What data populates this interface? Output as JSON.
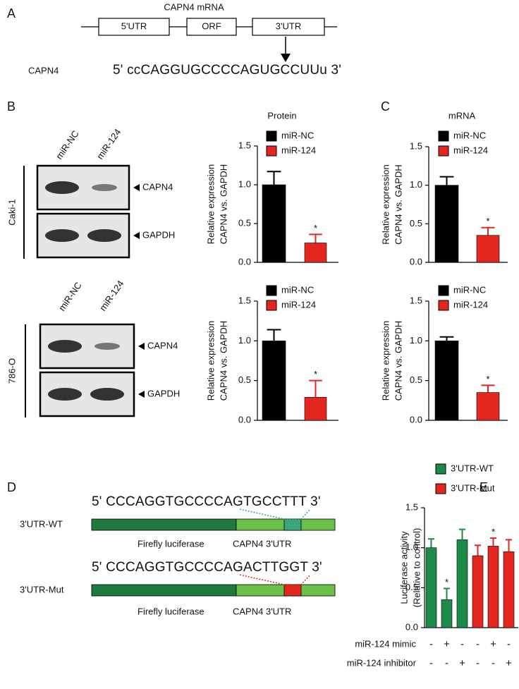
{
  "panel_labels": [
    "A",
    "B",
    "C",
    "D",
    "E"
  ],
  "panel_a": {
    "title": "CAPN4 mRNA",
    "regions": [
      "5'UTR",
      "ORF",
      "3'UTR"
    ],
    "gene": "CAPN4",
    "sequence": "5' ccCAGGUGCCCCAGUGCCUUu 3'"
  },
  "blots": [
    {
      "cell_line": "Caki-1",
      "lanes": [
        "miR-NC",
        "miR-124"
      ],
      "bands": [
        "CAPN4",
        "GAPDH"
      ]
    },
    {
      "cell_line": "786-O",
      "lanes": [
        "miR-NC",
        "miR-124"
      ],
      "bands": [
        "CAPN4",
        "GAPDH"
      ]
    }
  ],
  "chart_data": [
    {
      "type": "bar",
      "title": "Protein",
      "y_label": [
        "Relative expression",
        "CAPN4 vs. GAPDH"
      ],
      "ylim": [
        0,
        1.5
      ],
      "yticks": [
        {
          "value": 0,
          "label": "0.0"
        },
        0.5,
        {
          "value": 1,
          "label": "1.0"
        },
        {
          "value": 1.5,
          "label": "1.5"
        }
      ],
      "series": [
        {
          "name": "miR-NC",
          "color": "#000000",
          "values": [
            1.0
          ],
          "errors": [
            0.17
          ],
          "annotations": [
            null
          ]
        },
        {
          "name": "miR-124",
          "color": "#e3261f",
          "values": [
            0.25
          ],
          "errors": [
            0.11
          ],
          "annotations": [
            "*"
          ]
        }
      ]
    },
    {
      "type": "bar",
      "y_label": [
        "Relative expression",
        "CAPN4 vs. GAPDH"
      ],
      "ylim": [
        0,
        1.5
      ],
      "yticks": [
        {
          "value": 0,
          "label": "0.0"
        },
        0.5,
        {
          "value": 1,
          "label": "1.0"
        },
        {
          "value": 1.5,
          "label": "1.5"
        }
      ],
      "series": [
        {
          "name": "miR-NC",
          "color": "#000000",
          "values": [
            1.0
          ],
          "errors": [
            0.14
          ],
          "annotations": [
            null
          ]
        },
        {
          "name": "miR-124",
          "color": "#e3261f",
          "values": [
            0.29
          ],
          "errors": [
            0.21
          ],
          "annotations": [
            "*"
          ]
        }
      ]
    },
    {
      "type": "bar",
      "title": "mRNA",
      "y_label": [
        "Relative expression",
        "CAPN4 vs. GAPDH"
      ],
      "ylim": [
        0,
        1.5
      ],
      "yticks": [
        {
          "value": 0,
          "label": "0.0"
        },
        0.5,
        {
          "value": 1,
          "label": "1.0"
        },
        {
          "value": 1.5,
          "label": "1.5"
        }
      ],
      "series": [
        {
          "name": "miR-NC",
          "color": "#000000",
          "values": [
            1.0
          ],
          "errors": [
            0.11
          ],
          "annotations": [
            null
          ]
        },
        {
          "name": "miR-124",
          "color": "#e3261f",
          "values": [
            0.35
          ],
          "errors": [
            0.1
          ],
          "annotations": [
            "*"
          ]
        }
      ]
    },
    {
      "type": "bar",
      "y_label": [
        "Relative expression",
        "CAPN4 vs. GAPDH"
      ],
      "ylim": [
        0,
        1.5
      ],
      "yticks": [
        {
          "value": 0,
          "label": "0.0"
        },
        0.5,
        {
          "value": 1,
          "label": "1.0"
        },
        {
          "value": 1.5,
          "label": "1.5"
        }
      ],
      "series": [
        {
          "name": "miR-NC",
          "color": "#000000",
          "values": [
            1.0
          ],
          "errors": [
            0.05
          ],
          "annotations": [
            null
          ]
        },
        {
          "name": "miR-124",
          "color": "#e3261f",
          "values": [
            0.35
          ],
          "errors": [
            0.09
          ],
          "annotations": [
            "*"
          ]
        }
      ]
    },
    {
      "type": "bar",
      "y_label": [
        "Luciferase activity",
        "(Relative to control)"
      ],
      "ylim": [
        0,
        1.5
      ],
      "yticks": [
        {
          "value": 0,
          "label": "0.0"
        },
        0.5,
        {
          "value": 1,
          "label": "1.0"
        },
        {
          "value": 1.5,
          "label": "1.5"
        }
      ],
      "series": [
        {
          "name": "3'UTR-WT",
          "color": "#1e8a4a",
          "values": [
            1.0,
            0.35,
            1.1
          ],
          "errors": [
            0.11,
            0.14,
            0.13
          ],
          "annotations": [
            null,
            "*",
            null
          ]
        },
        {
          "name": "3'UTR-Mut",
          "color": "#e3261f",
          "values": [
            0.9,
            1.02,
            0.95
          ],
          "errors": [
            0.13,
            0.1,
            0.15
          ],
          "annotations": [
            null,
            "*",
            null
          ]
        }
      ],
      "treatments": [
        {
          "label": "miR-124 mimic",
          "signs": [
            "-",
            "+",
            "-",
            "-",
            "+",
            "-"
          ]
        },
        {
          "label": "miR-124 inhibitor",
          "signs": [
            "-",
            "-",
            "+",
            "-",
            "-",
            "+"
          ]
        }
      ]
    }
  ],
  "panel_d": {
    "constructs": [
      {
        "name": "3'UTR-WT",
        "sequence": "5' CCCAGGTGCCCCAGTGCCTTT 3'",
        "segments": [
          "Firefly luciferase",
          "CAPN4 3'UTR"
        ]
      },
      {
        "name": "3'UTR-Mut",
        "sequence": "5' CCCAGGTGCCCCAGACTTGGT 3'",
        "segments": [
          "Firefly luciferase",
          "CAPN4 3'UTR"
        ]
      }
    ]
  }
}
